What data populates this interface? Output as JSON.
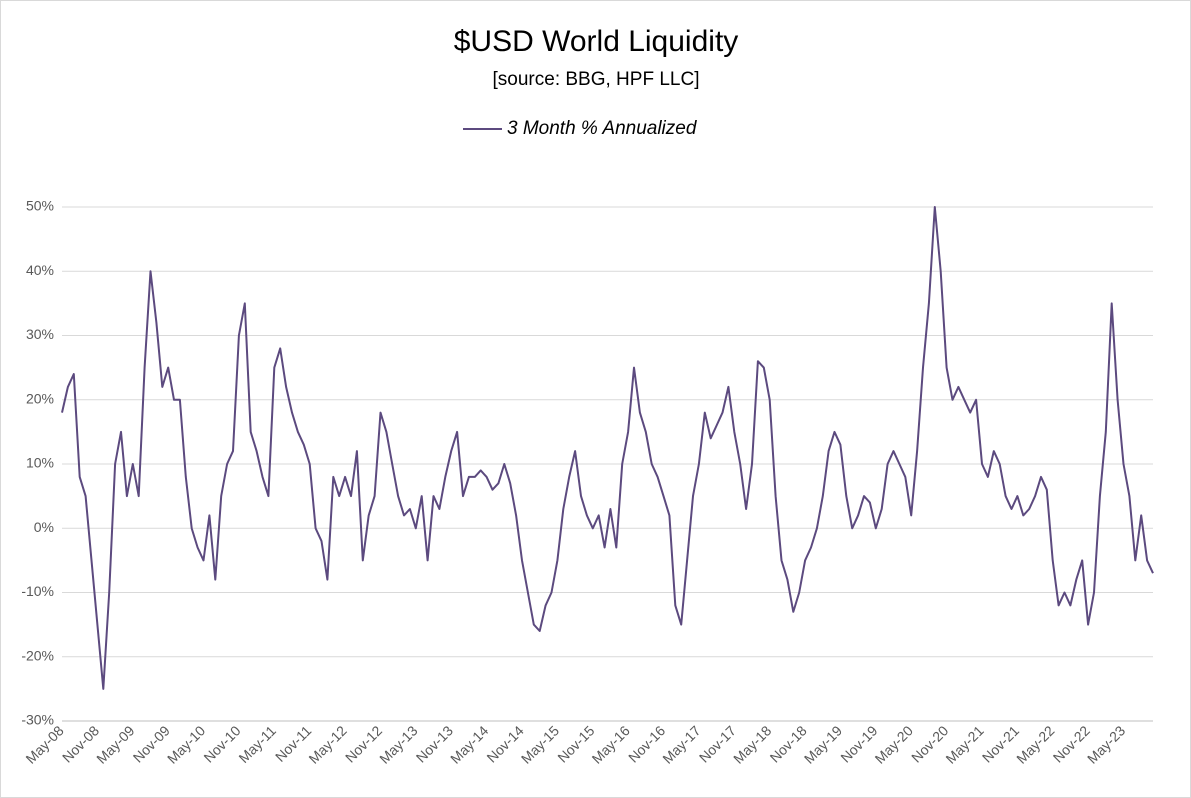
{
  "chart_data": {
    "type": "line",
    "title": "$USD World Liquidity",
    "subtitle": "[source: BBG, HPF LLC]",
    "categories": [
      "May-08",
      null,
      null,
      null,
      null,
      null,
      "Nov-08",
      null,
      null,
      null,
      null,
      null,
      "May-09",
      null,
      null,
      null,
      null,
      null,
      "Nov-09",
      null,
      null,
      null,
      null,
      null,
      "May-10",
      null,
      null,
      null,
      null,
      null,
      "Nov-10",
      null,
      null,
      null,
      null,
      null,
      "May-11",
      null,
      null,
      null,
      null,
      null,
      "Nov-11",
      null,
      null,
      null,
      null,
      null,
      "May-12",
      null,
      null,
      null,
      null,
      null,
      "Nov-12",
      null,
      null,
      null,
      null,
      null,
      "May-13",
      null,
      null,
      null,
      null,
      null,
      "Nov-13",
      null,
      null,
      null,
      null,
      null,
      "May-14",
      null,
      null,
      null,
      null,
      null,
      "Nov-14",
      null,
      null,
      null,
      null,
      null,
      "May-15",
      null,
      null,
      null,
      null,
      null,
      "Nov-15",
      null,
      null,
      null,
      null,
      null,
      "May-16",
      null,
      null,
      null,
      null,
      null,
      "Nov-16",
      null,
      null,
      null,
      null,
      null,
      "May-17",
      null,
      null,
      null,
      null,
      null,
      "Nov-17",
      null,
      null,
      null,
      null,
      null,
      "May-18",
      null,
      null,
      null,
      null,
      null,
      "Nov-18",
      null,
      null,
      null,
      null,
      null,
      "May-19",
      null,
      null,
      null,
      null,
      null,
      "Nov-19",
      null,
      null,
      null,
      null,
      null,
      "May-20",
      null,
      null,
      null,
      null,
      null,
      "Nov-20",
      null,
      null,
      null,
      null,
      null,
      "May-21",
      null,
      null,
      null,
      null,
      null,
      "Nov-21",
      null,
      null,
      null,
      null,
      null,
      "May-22",
      null,
      null,
      null,
      null,
      null,
      "Nov-22",
      null,
      null,
      null,
      null,
      null,
      "May-23",
      null,
      null,
      null,
      null,
      null
    ],
    "series": [
      {
        "name": "3 Month % Annualized",
        "color": "#5c4a7f",
        "values": [
          18,
          22,
          24,
          8,
          5,
          -5,
          -15,
          -25,
          -10,
          10,
          15,
          5,
          10,
          5,
          25,
          40,
          32,
          22,
          25,
          20,
          20,
          8,
          0,
          -3,
          -5,
          2,
          -8,
          5,
          10,
          12,
          30,
          35,
          15,
          12,
          8,
          5,
          25,
          28,
          22,
          18,
          15,
          13,
          10,
          0,
          -2,
          -8,
          8,
          5,
          8,
          5,
          12,
          -5,
          2,
          5,
          18,
          15,
          10,
          5,
          2,
          3,
          0,
          5,
          -5,
          5,
          3,
          8,
          12,
          15,
          5,
          8,
          8,
          9,
          8,
          6,
          7,
          10,
          7,
          2,
          -5,
          -10,
          -15,
          -16,
          -12,
          -10,
          -5,
          3,
          8,
          12,
          5,
          2,
          0,
          2,
          -3,
          3,
          -3,
          10,
          15,
          25,
          18,
          15,
          10,
          8,
          5,
          2,
          -12,
          -15,
          -5,
          5,
          10,
          18,
          14,
          16,
          18,
          22,
          15,
          10,
          3,
          10,
          26,
          25,
          20,
          5,
          -5,
          -8,
          -13,
          -10,
          -5,
          -3,
          0,
          5,
          12,
          15,
          13,
          5,
          0,
          2,
          5,
          4,
          0,
          3,
          10,
          12,
          10,
          8,
          2,
          12,
          25,
          35,
          50,
          40,
          25,
          20,
          22,
          20,
          18,
          20,
          10,
          8,
          12,
          10,
          5,
          3,
          5,
          2,
          3,
          5,
          8,
          6,
          -5,
          -12,
          -10,
          -12,
          -8,
          -5,
          -15,
          -10,
          5,
          15,
          35,
          20,
          10,
          5,
          -5,
          2,
          -5,
          -7
        ]
      }
    ],
    "ylim": [
      -30,
      50
    ],
    "yticks": [
      {
        "value": -30,
        "label": "-30%"
      },
      {
        "value": -20,
        "label": "-20%"
      },
      {
        "value": -10,
        "label": "-10%"
      },
      {
        "value": 0,
        "label": "0%"
      },
      {
        "value": 10,
        "label": "10%"
      },
      {
        "value": 20,
        "label": "20%"
      },
      {
        "value": 30,
        "label": "30%"
      },
      {
        "value": 40,
        "label": "40%"
      },
      {
        "value": 50,
        "label": "50%"
      }
    ],
    "grid": true
  }
}
